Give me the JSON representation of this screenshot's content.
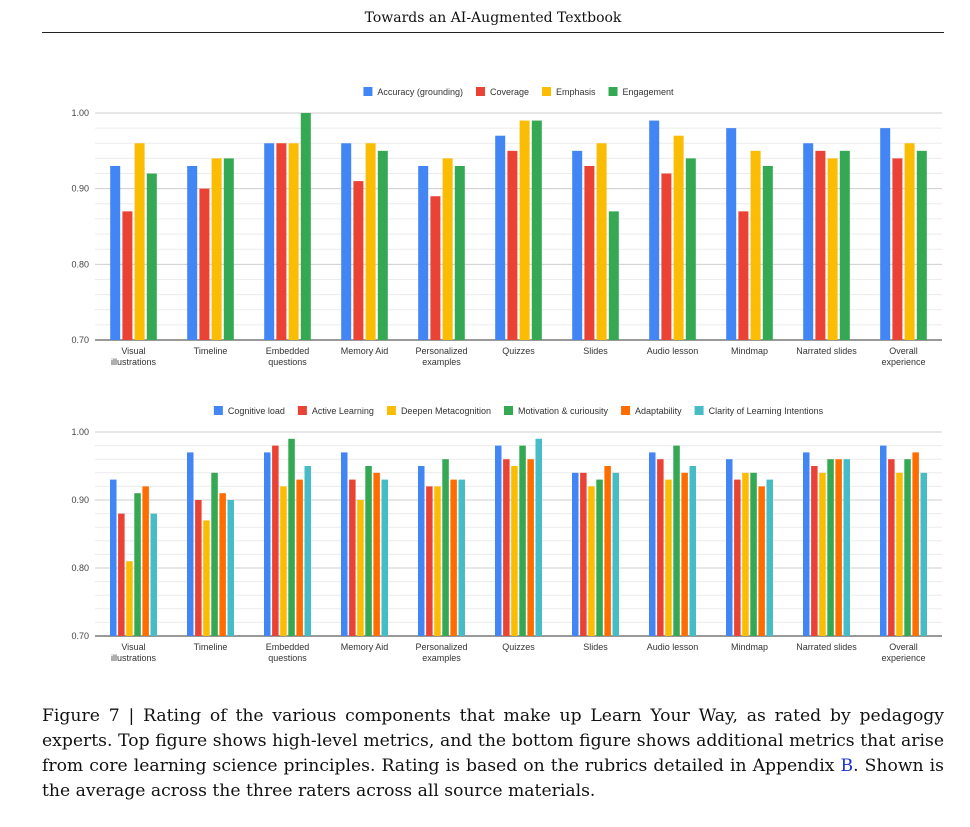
{
  "header": {
    "running_title": "Towards an AI-Augmented Textbook"
  },
  "caption": {
    "figure_label": "Figure 7 | ",
    "text": "Rating of the various components that make up Learn Your Way, as rated by pedagogy experts. Top figure shows high-level metrics, and the bottom figure shows additional metrics that arise from core learning science principles. Rating is based on the rubrics detailed in Appendix ",
    "appendix_link": "B",
    "text_after": ". Shown is the average across the three raters across all source materials."
  },
  "chart_data": [
    {
      "type": "bar",
      "title": "",
      "xlabel": "",
      "ylabel": "",
      "ylim": [
        0.7,
        1.0
      ],
      "yticks": [
        "0.70",
        "0.80",
        "0.90",
        "1.00"
      ],
      "yticks_values": [
        0.7,
        0.8,
        0.9,
        1.0
      ],
      "grid": true,
      "legend_position": "top",
      "categories": [
        [
          "Visual",
          "illustrations"
        ],
        [
          "Timeline"
        ],
        [
          "Embedded",
          "questions"
        ],
        [
          "Memory Aid"
        ],
        [
          "Personalized",
          "examples"
        ],
        [
          "Quizzes"
        ],
        [
          "Slides"
        ],
        [
          "Audio lesson"
        ],
        [
          "Mindmap"
        ],
        [
          "Narrated slides"
        ],
        [
          "Overall",
          "experience"
        ]
      ],
      "series": [
        {
          "name": "Accuracy (grounding)",
          "color": "#4285F4",
          "values": [
            0.93,
            0.93,
            0.96,
            0.96,
            0.93,
            0.97,
            0.95,
            0.99,
            0.98,
            0.96,
            0.98
          ]
        },
        {
          "name": "Coverage",
          "color": "#EA4335",
          "values": [
            0.87,
            0.9,
            0.96,
            0.91,
            0.89,
            0.95,
            0.93,
            0.92,
            0.87,
            0.95,
            0.94
          ]
        },
        {
          "name": "Emphasis",
          "color": "#FBBC04",
          "values": [
            0.96,
            0.94,
            0.96,
            0.96,
            0.94,
            0.99,
            0.96,
            0.97,
            0.95,
            0.94,
            0.96
          ]
        },
        {
          "name": "Engagement",
          "color": "#34A853",
          "values": [
            0.92,
            0.94,
            1.0,
            0.95,
            0.93,
            0.99,
            0.87,
            0.94,
            0.93,
            0.95,
            0.95
          ]
        }
      ]
    },
    {
      "type": "bar",
      "title": "",
      "xlabel": "",
      "ylabel": "",
      "ylim": [
        0.7,
        1.0
      ],
      "yticks": [
        "0.70",
        "0.80",
        "0.90",
        "1.00"
      ],
      "yticks_values": [
        0.7,
        0.8,
        0.9,
        1.0
      ],
      "grid": true,
      "legend_position": "top",
      "categories": [
        [
          "Visual",
          "illustrations"
        ],
        [
          "Timeline"
        ],
        [
          "Embedded",
          "questions"
        ],
        [
          "Memory Aid"
        ],
        [
          "Personalized",
          "examples"
        ],
        [
          "Quizzes"
        ],
        [
          "Slides"
        ],
        [
          "Audio lesson"
        ],
        [
          "Mindmap"
        ],
        [
          "Narrated slides"
        ],
        [
          "Overall",
          "experience"
        ]
      ],
      "series": [
        {
          "name": "Cognitive load",
          "color": "#4285F4",
          "values": [
            0.93,
            0.97,
            0.97,
            0.97,
            0.95,
            0.98,
            0.94,
            0.97,
            0.96,
            0.97,
            0.98
          ]
        },
        {
          "name": "Active Learning",
          "color": "#EA4335",
          "values": [
            0.88,
            0.9,
            0.98,
            0.93,
            0.92,
            0.96,
            0.94,
            0.96,
            0.93,
            0.95,
            0.96
          ]
        },
        {
          "name": "Deepen Metacognition",
          "color": "#FBBC04",
          "values": [
            0.81,
            0.87,
            0.92,
            0.9,
            0.92,
            0.95,
            0.92,
            0.93,
            0.94,
            0.94,
            0.94
          ]
        },
        {
          "name": "Motivation & curiousity",
          "color": "#34A853",
          "values": [
            0.91,
            0.94,
            0.99,
            0.95,
            0.96,
            0.98,
            0.93,
            0.98,
            0.94,
            0.96,
            0.96
          ]
        },
        {
          "name": "Adaptability",
          "color": "#FF6D01",
          "values": [
            0.92,
            0.91,
            0.93,
            0.94,
            0.93,
            0.96,
            0.95,
            0.94,
            0.92,
            0.96,
            0.97
          ]
        },
        {
          "name": "Clarity of Learning Intentions",
          "color": "#46BDC6",
          "values": [
            0.88,
            0.9,
            0.95,
            0.93,
            0.93,
            0.99,
            0.94,
            0.95,
            0.93,
            0.96,
            0.94
          ]
        }
      ]
    }
  ]
}
